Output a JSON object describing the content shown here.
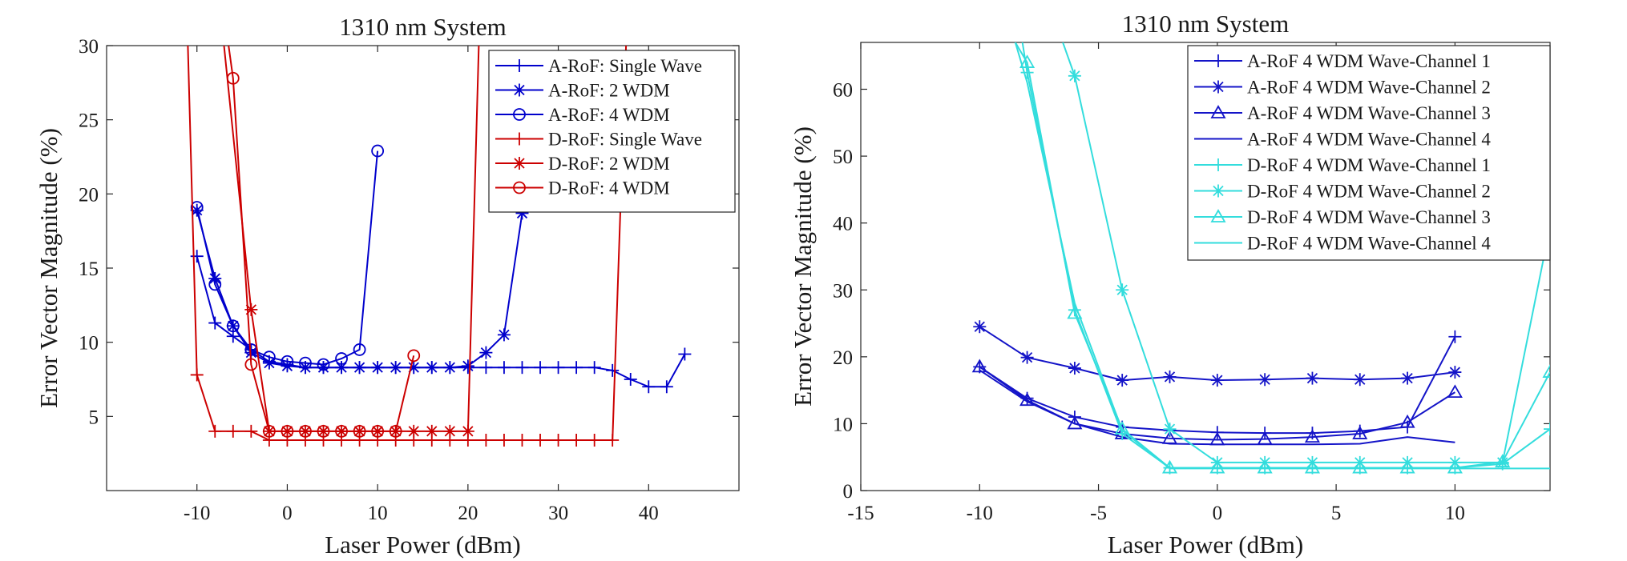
{
  "chart_data": [
    {
      "type": "line",
      "title": "1310 nm System",
      "xlabel": "Laser Power (dBm)",
      "ylabel": "Error Vector Magnitude (%)",
      "xlim": [
        -20,
        50
      ],
      "ylim": [
        0,
        30
      ],
      "xticks": [
        -10,
        0,
        10,
        20,
        30,
        40
      ],
      "yticks": [
        5,
        10,
        15,
        20,
        25,
        30
      ],
      "legend_position": "top-right",
      "series": [
        {
          "name": "A-RoF: Single Wave",
          "color": "#0000cc",
          "marker": "plus",
          "x": [
            -10,
            -8,
            -6,
            -4,
            -2,
            0,
            2,
            4,
            6,
            8,
            10,
            12,
            14,
            16,
            18,
            20,
            22,
            24,
            26,
            28,
            30,
            32,
            34,
            36,
            38,
            40,
            42,
            44
          ],
          "y": [
            15.8,
            11.3,
            10.4,
            9.5,
            8.7,
            8.5,
            8.3,
            8.3,
            8.3,
            8.3,
            8.3,
            8.3,
            8.3,
            8.3,
            8.3,
            8.3,
            8.3,
            8.3,
            8.3,
            8.3,
            8.3,
            8.3,
            8.3,
            8.1,
            7.5,
            7.0,
            7.0,
            9.2
          ]
        },
        {
          "name": "A-RoF: 2 WDM",
          "color": "#0000cc",
          "marker": "star",
          "x": [
            -10,
            -8,
            -6,
            -4,
            -2,
            0,
            2,
            4,
            6,
            8,
            10,
            12,
            14,
            16,
            18,
            20,
            22,
            24,
            26
          ],
          "y": [
            18.9,
            14.3,
            11.1,
            9.3,
            8.6,
            8.4,
            8.3,
            8.3,
            8.3,
            8.3,
            8.3,
            8.3,
            8.3,
            8.3,
            8.3,
            8.4,
            9.3,
            10.5,
            18.7
          ]
        },
        {
          "name": "A-RoF: 4 WDM",
          "color": "#0000cc",
          "marker": "circle",
          "x": [
            -10,
            -8,
            -6,
            -4,
            -2,
            0,
            2,
            4,
            6,
            8,
            10
          ],
          "y": [
            19.1,
            13.9,
            11.1,
            9.5,
            9.0,
            8.7,
            8.6,
            8.5,
            8.9,
            9.5,
            22.9
          ]
        },
        {
          "name": "D-RoF: Single Wave",
          "color": "#cc0000",
          "marker": "plus",
          "x": [
            -11,
            -10,
            -8,
            -6,
            -4,
            -2,
            0,
            2,
            4,
            6,
            8,
            10,
            12,
            14,
            16,
            18,
            20,
            22,
            24,
            26,
            28,
            30,
            32,
            34,
            36,
            37.5
          ],
          "y": [
            30,
            7.8,
            4.0,
            4.0,
            4.0,
            3.4,
            3.4,
            3.4,
            3.4,
            3.4,
            3.4,
            3.4,
            3.4,
            3.4,
            3.4,
            3.4,
            3.4,
            3.4,
            3.4,
            3.4,
            3.4,
            3.4,
            3.4,
            3.4,
            3.4,
            30
          ]
        },
        {
          "name": "D-RoF: 2 WDM",
          "color": "#cc0000",
          "marker": "star",
          "x": [
            -7,
            -4,
            -2,
            0,
            2,
            4,
            6,
            8,
            10,
            12,
            14,
            16,
            18,
            20,
            21.2
          ],
          "y": [
            30,
            12.2,
            4.0,
            4.0,
            4.0,
            4.0,
            4.0,
            4.0,
            4.0,
            4.0,
            4.0,
            4.0,
            4.0,
            4.0,
            30
          ]
        },
        {
          "name": "D-RoF: 4 WDM",
          "color": "#cc0000",
          "marker": "circle",
          "x": [
            -6.5,
            -6,
            -4,
            -2,
            0,
            2,
            4,
            6,
            8,
            10,
            12,
            14
          ],
          "y": [
            30,
            27.8,
            8.5,
            4.0,
            4.0,
            4.0,
            4.0,
            4.0,
            4.0,
            4.0,
            4.0,
            9.1
          ]
        }
      ]
    },
    {
      "type": "line",
      "title": "1310 nm System",
      "xlabel": "Laser Power (dBm)",
      "ylabel": "Error Vector Magnitude (%)",
      "xlim": [
        -15,
        14
      ],
      "ylim": [
        0,
        67
      ],
      "xticks": [
        -15,
        -10,
        -5,
        0,
        5,
        10
      ],
      "yticks": [
        0,
        10,
        20,
        30,
        40,
        50,
        60
      ],
      "legend_position": "top-right",
      "series": [
        {
          "name": "A-RoF 4 WDM Wave-Channel 1",
          "color": "#1414c8",
          "marker": "plus",
          "x": [
            -10,
            -8,
            -6,
            -4,
            -2,
            0,
            2,
            4,
            6,
            8,
            10
          ],
          "y": [
            18.5,
            13.8,
            11.0,
            9.5,
            9.0,
            8.7,
            8.6,
            8.6,
            8.9,
            9.5,
            23.0
          ]
        },
        {
          "name": "A-RoF 4 WDM Wave-Channel 2",
          "color": "#1414c8",
          "marker": "star",
          "x": [
            -10,
            -8,
            -6,
            -4,
            -2,
            0,
            2,
            4,
            6,
            8,
            10
          ],
          "y": [
            24.5,
            19.9,
            18.3,
            16.5,
            17.0,
            16.5,
            16.6,
            16.8,
            16.6,
            16.8,
            17.7
          ]
        },
        {
          "name": "A-RoF 4 WDM Wave-Channel 3",
          "color": "#1414c8",
          "marker": "triangle",
          "x": [
            -10,
            -8,
            -6,
            -4,
            -2,
            0,
            2,
            4,
            6,
            8,
            10
          ],
          "y": [
            18.5,
            13.5,
            10.0,
            8.5,
            7.8,
            7.6,
            7.7,
            8.0,
            8.5,
            10.2,
            14.7
          ]
        },
        {
          "name": "A-RoF 4 WDM Wave-Channel 4",
          "color": "#1414c8",
          "marker": "none",
          "x": [
            -10,
            -8,
            -6,
            -4,
            -2,
            0,
            2,
            4,
            6,
            8,
            10
          ],
          "y": [
            18.0,
            13.3,
            10.0,
            8.0,
            7.0,
            6.9,
            6.9,
            6.9,
            7.0,
            8.0,
            7.2
          ]
        },
        {
          "name": "D-RoF 4 WDM Wave-Channel 1",
          "color": "#33dddd",
          "marker": "plus",
          "x": [
            -8.2,
            -8,
            -6,
            -4,
            -2,
            0,
            2,
            4,
            6,
            8,
            10,
            12,
            14
          ],
          "y": [
            67,
            62.5,
            27.0,
            8.5,
            3.4,
            3.4,
            3.4,
            3.4,
            3.4,
            3.4,
            3.4,
            4.0,
            9.2
          ]
        },
        {
          "name": "D-RoF 4 WDM Wave-Channel 2",
          "color": "#33dddd",
          "marker": "star",
          "x": [
            -6.5,
            -6,
            -4,
            -2,
            0,
            2,
            4,
            6,
            8,
            10,
            12,
            14
          ],
          "y": [
            67,
            62.0,
            30.0,
            9.2,
            4.2,
            4.2,
            4.2,
            4.2,
            4.2,
            4.2,
            4.2,
            39.5
          ]
        },
        {
          "name": "D-RoF 4 WDM Wave-Channel 3",
          "color": "#33dddd",
          "marker": "triangle",
          "x": [
            -8.5,
            -8,
            -6,
            -4,
            -2,
            0,
            2,
            4,
            6,
            8,
            10,
            12,
            14
          ],
          "y": [
            67,
            64.0,
            26.5,
            9.2,
            3.4,
            3.4,
            3.4,
            3.4,
            3.4,
            3.4,
            3.4,
            4.3,
            17.7
          ]
        },
        {
          "name": "D-RoF 4 WDM Wave-Channel 4",
          "color": "#33dddd",
          "marker": "none",
          "x": [
            -8.5,
            -8,
            -6,
            -4,
            -2,
            0,
            2,
            4,
            6,
            8,
            10,
            12,
            14
          ],
          "y": [
            67,
            61.0,
            28.0,
            9.0,
            3.3,
            3.3,
            3.3,
            3.3,
            3.3,
            3.3,
            3.3,
            3.3,
            3.3
          ]
        }
      ]
    }
  ]
}
